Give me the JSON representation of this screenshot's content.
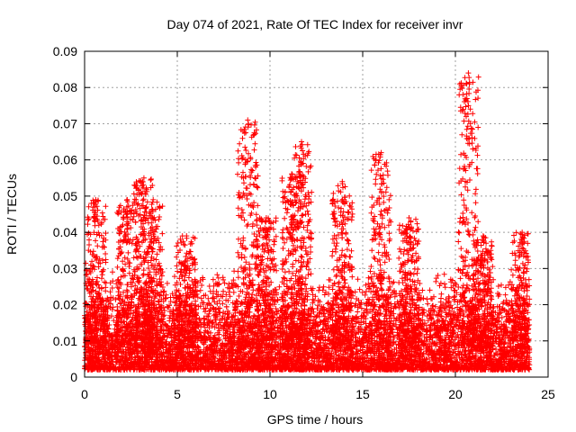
{
  "chart_data": {
    "type": "scatter",
    "title": "Day 074 of 2021, Rate Of TEC Index for receiver invr",
    "xlabel": "GPS time / hours",
    "ylabel": "ROTI / TECUs",
    "xlim": [
      0,
      25
    ],
    "ylim": [
      0,
      0.09
    ],
    "xticks": [
      0,
      5,
      10,
      15,
      20,
      25
    ],
    "xtick_labels": [
      "0",
      "5",
      "10",
      "15",
      "20",
      "25"
    ],
    "yticks": [
      0,
      0.01,
      0.02,
      0.03,
      0.04,
      0.05,
      0.06,
      0.07,
      0.08,
      0.09
    ],
    "ytick_labels": [
      "0",
      "0.01",
      "0.02",
      "0.03",
      "0.04",
      "0.05",
      "0.06",
      "0.07",
      "0.08",
      "0.09"
    ],
    "grid": true,
    "marker": "+",
    "marker_color": "#ff0000",
    "series": [
      {
        "name": "ROTI",
        "description": "dense band of ROTI samples roughly between 0.002 and 0.03 TECU/s throughout the day",
        "x_range": [
          0,
          24
        ],
        "baseline_range": [
          0.002,
          0.03
        ]
      }
    ],
    "peaks": [
      {
        "x": 0.6,
        "y": 0.049
      },
      {
        "x": 2.3,
        "y": 0.049
      },
      {
        "x": 3.2,
        "y": 0.055
      },
      {
        "x": 3.7,
        "y": 0.049
      },
      {
        "x": 5.5,
        "y": 0.039
      },
      {
        "x": 8.8,
        "y": 0.071
      },
      {
        "x": 9.8,
        "y": 0.044
      },
      {
        "x": 11.2,
        "y": 0.056
      },
      {
        "x": 11.7,
        "y": 0.065
      },
      {
        "x": 13.9,
        "y": 0.054
      },
      {
        "x": 16.0,
        "y": 0.062
      },
      {
        "x": 17.5,
        "y": 0.044
      },
      {
        "x": 20.7,
        "y": 0.084
      },
      {
        "x": 21.5,
        "y": 0.039
      },
      {
        "x": 23.6,
        "y": 0.04
      }
    ]
  }
}
